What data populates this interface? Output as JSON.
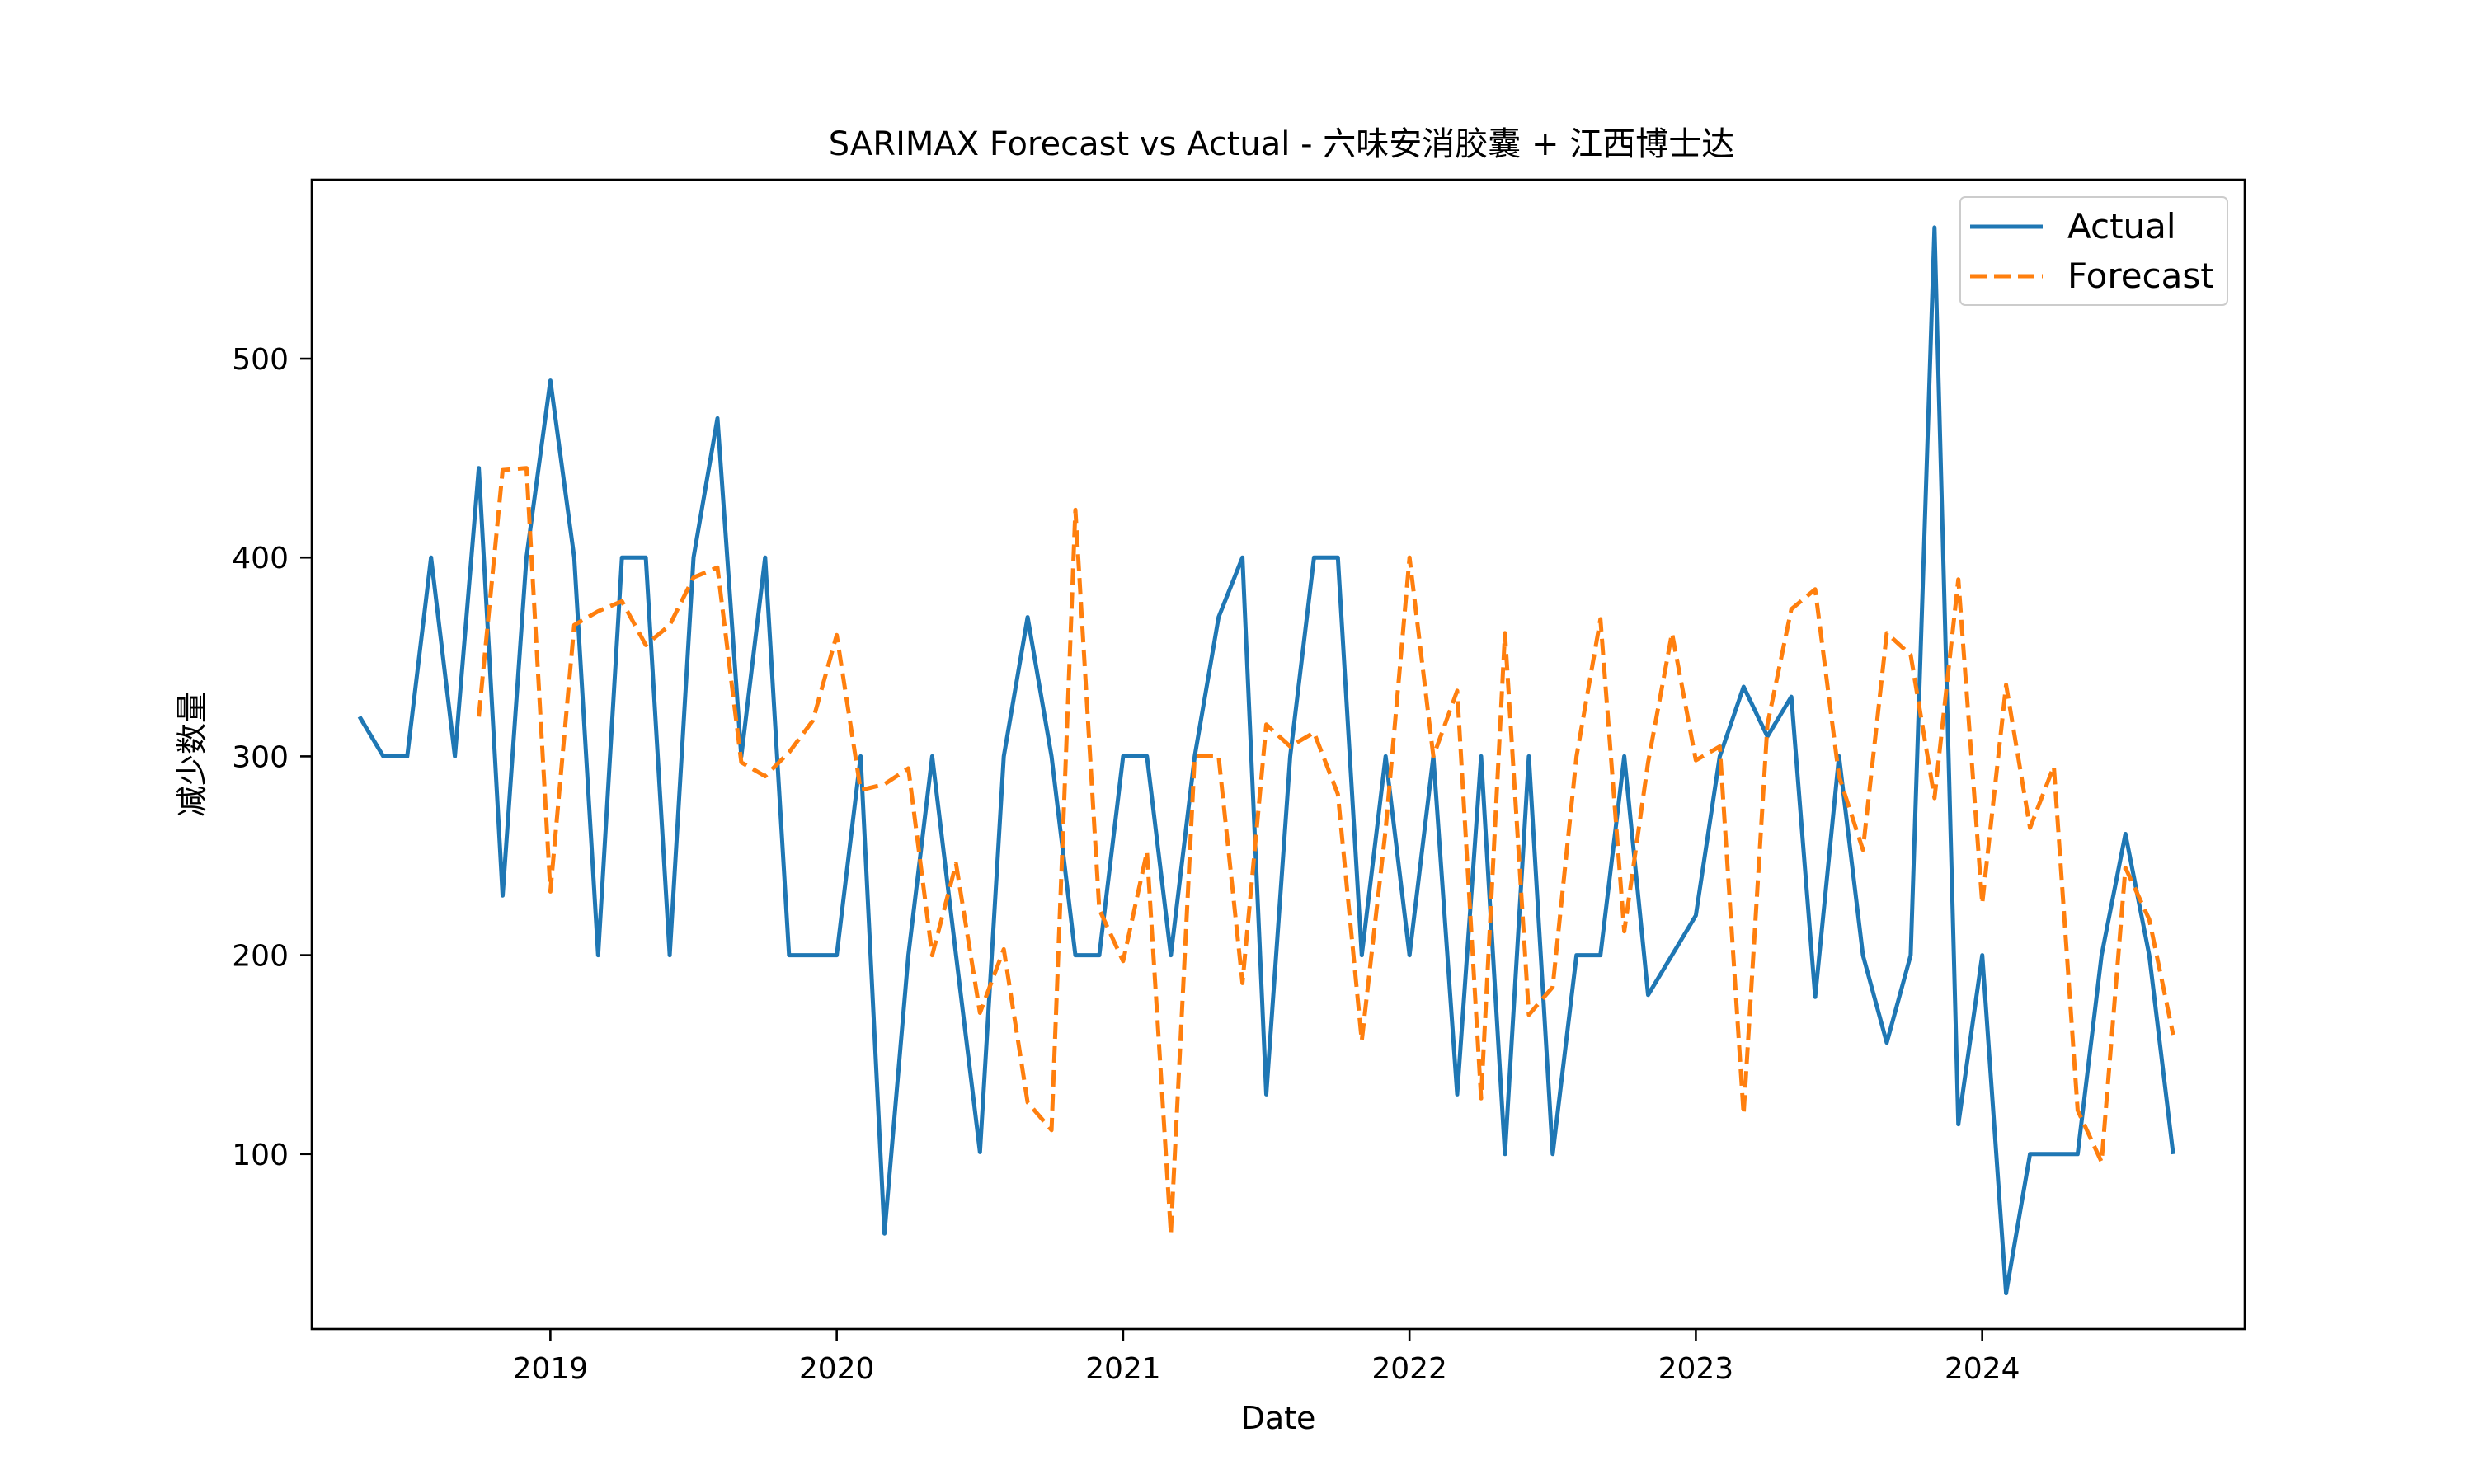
{
  "chart_data": {
    "type": "line",
    "title": "SARIMAX Forecast vs Actual - 六味安消胶囊 + 江西博士达",
    "xlabel": "Date",
    "ylabel": "减少数量",
    "x_ticks": [
      "2019",
      "2020",
      "2021",
      "2022",
      "2023",
      "2024"
    ],
    "y_ticks": [
      100,
      200,
      300,
      400,
      500
    ],
    "xlim": [
      "2018-03",
      "2024-12"
    ],
    "ylim": [
      12,
      590
    ],
    "grid": false,
    "legend_position": "top-right",
    "series": [
      {
        "name": "Actual",
        "color": "#1f77b4",
        "style": "solid",
        "points": [
          [
            "2018-05",
            320
          ],
          [
            "2018-06",
            300
          ],
          [
            "2018-07",
            300
          ],
          [
            "2018-08",
            400
          ],
          [
            "2018-09",
            300
          ],
          [
            "2018-10",
            445
          ],
          [
            "2018-11",
            230
          ],
          [
            "2018-12",
            400
          ],
          [
            "2019-01",
            489
          ],
          [
            "2019-02",
            400
          ],
          [
            "2019-03",
            200
          ],
          [
            "2019-04",
            400
          ],
          [
            "2019-05",
            400
          ],
          [
            "2019-06",
            200
          ],
          [
            "2019-07",
            400
          ],
          [
            "2019-08",
            470
          ],
          [
            "2019-09",
            300
          ],
          [
            "2019-10",
            400
          ],
          [
            "2019-11",
            200
          ],
          [
            "2019-12",
            200
          ],
          [
            "2020-01",
            200
          ],
          [
            "2020-02",
            300
          ],
          [
            "2020-03",
            60
          ],
          [
            "2020-04",
            200
          ],
          [
            "2020-05",
            300
          ],
          [
            "2020-06",
            200
          ],
          [
            "2020-07",
            101
          ],
          [
            "2020-08",
            300
          ],
          [
            "2020-09",
            370
          ],
          [
            "2020-10",
            300
          ],
          [
            "2020-11",
            200
          ],
          [
            "2020-12",
            200
          ],
          [
            "2021-01",
            300
          ],
          [
            "2021-02",
            300
          ],
          [
            "2021-03",
            200
          ],
          [
            "2021-04",
            300
          ],
          [
            "2021-05",
            370
          ],
          [
            "2021-06",
            400
          ],
          [
            "2021-07",
            130
          ],
          [
            "2021-08",
            300
          ],
          [
            "2021-09",
            400
          ],
          [
            "2021-10",
            400
          ],
          [
            "2021-11",
            200
          ],
          [
            "2021-12",
            300
          ],
          [
            "2022-01",
            200
          ],
          [
            "2022-02",
            300
          ],
          [
            "2022-03",
            130
          ],
          [
            "2022-04",
            300
          ],
          [
            "2022-05",
            100
          ],
          [
            "2022-06",
            300
          ],
          [
            "2022-07",
            100
          ],
          [
            "2022-08",
            200
          ],
          [
            "2022-09",
            200
          ],
          [
            "2022-10",
            300
          ],
          [
            "2022-11",
            180
          ],
          [
            "2022-12",
            200
          ],
          [
            "2023-01",
            220
          ],
          [
            "2023-02",
            300
          ],
          [
            "2023-03",
            335
          ],
          [
            "2023-04",
            310
          ],
          [
            "2023-05",
            330
          ],
          [
            "2023-06",
            179
          ],
          [
            "2023-07",
            300
          ],
          [
            "2023-08",
            200
          ],
          [
            "2023-09",
            156
          ],
          [
            "2023-10",
            200
          ],
          [
            "2023-11",
            566
          ],
          [
            "2023-12",
            115
          ],
          [
            "2024-01",
            200
          ],
          [
            "2024-02",
            30
          ],
          [
            "2024-03",
            100
          ],
          [
            "2024-04",
            100
          ],
          [
            "2024-05",
            100
          ],
          [
            "2024-06",
            200
          ],
          [
            "2024-07",
            261
          ],
          [
            "2024-08",
            200
          ],
          [
            "2024-09",
            100
          ]
        ]
      },
      {
        "name": "Forecast",
        "color": "#ff7f0e",
        "style": "dashed",
        "points": [
          [
            "2018-10",
            320
          ],
          [
            "2018-11",
            444
          ],
          [
            "2018-12",
            445
          ],
          [
            "2019-01",
            232
          ],
          [
            "2019-02",
            366
          ],
          [
            "2019-03",
            373
          ],
          [
            "2019-04",
            378
          ],
          [
            "2019-05",
            356
          ],
          [
            "2019-06",
            366
          ],
          [
            "2019-07",
            390
          ],
          [
            "2019-08",
            395
          ],
          [
            "2019-09",
            297
          ],
          [
            "2019-10",
            290
          ],
          [
            "2019-11",
            302
          ],
          [
            "2019-12",
            318
          ],
          [
            "2020-01",
            361
          ],
          [
            "2020-02",
            283
          ],
          [
            "2020-03",
            286
          ],
          [
            "2020-04",
            294
          ],
          [
            "2020-05",
            200
          ],
          [
            "2020-06",
            246
          ],
          [
            "2020-07",
            171
          ],
          [
            "2020-08",
            203
          ],
          [
            "2020-09",
            126
          ],
          [
            "2020-10",
            112
          ],
          [
            "2020-11",
            424
          ],
          [
            "2020-12",
            223
          ],
          [
            "2021-01",
            197
          ],
          [
            "2021-02",
            252
          ],
          [
            "2021-03",
            60
          ],
          [
            "2021-04",
            300
          ],
          [
            "2021-05",
            300
          ],
          [
            "2021-06",
            186
          ],
          [
            "2021-07",
            316
          ],
          [
            "2021-08",
            305
          ],
          [
            "2021-09",
            312
          ],
          [
            "2021-10",
            281
          ],
          [
            "2021-11",
            157
          ],
          [
            "2021-12",
            263
          ],
          [
            "2022-01",
            400
          ],
          [
            "2022-02",
            300
          ],
          [
            "2022-03",
            333
          ],
          [
            "2022-04",
            128
          ],
          [
            "2022-05",
            362
          ],
          [
            "2022-06",
            170
          ],
          [
            "2022-07",
            184
          ],
          [
            "2022-08",
            300
          ],
          [
            "2022-09",
            369
          ],
          [
            "2022-10",
            212
          ],
          [
            "2022-11",
            297
          ],
          [
            "2022-12",
            362
          ],
          [
            "2023-01",
            298
          ],
          [
            "2023-02",
            305
          ],
          [
            "2023-03",
            120
          ],
          [
            "2023-04",
            316
          ],
          [
            "2023-05",
            374
          ],
          [
            "2023-06",
            384
          ],
          [
            "2023-07",
            290
          ],
          [
            "2023-08",
            253
          ],
          [
            "2023-09",
            362
          ],
          [
            "2023-10",
            351
          ],
          [
            "2023-11",
            279
          ],
          [
            "2023-12",
            389
          ],
          [
            "2024-01",
            226
          ],
          [
            "2024-02",
            336
          ],
          [
            "2024-03",
            264
          ],
          [
            "2024-04",
            295
          ],
          [
            "2024-05",
            122
          ],
          [
            "2024-06",
            96
          ],
          [
            "2024-07",
            244
          ],
          [
            "2024-08",
            218
          ],
          [
            "2024-09",
            160
          ]
        ]
      }
    ]
  }
}
